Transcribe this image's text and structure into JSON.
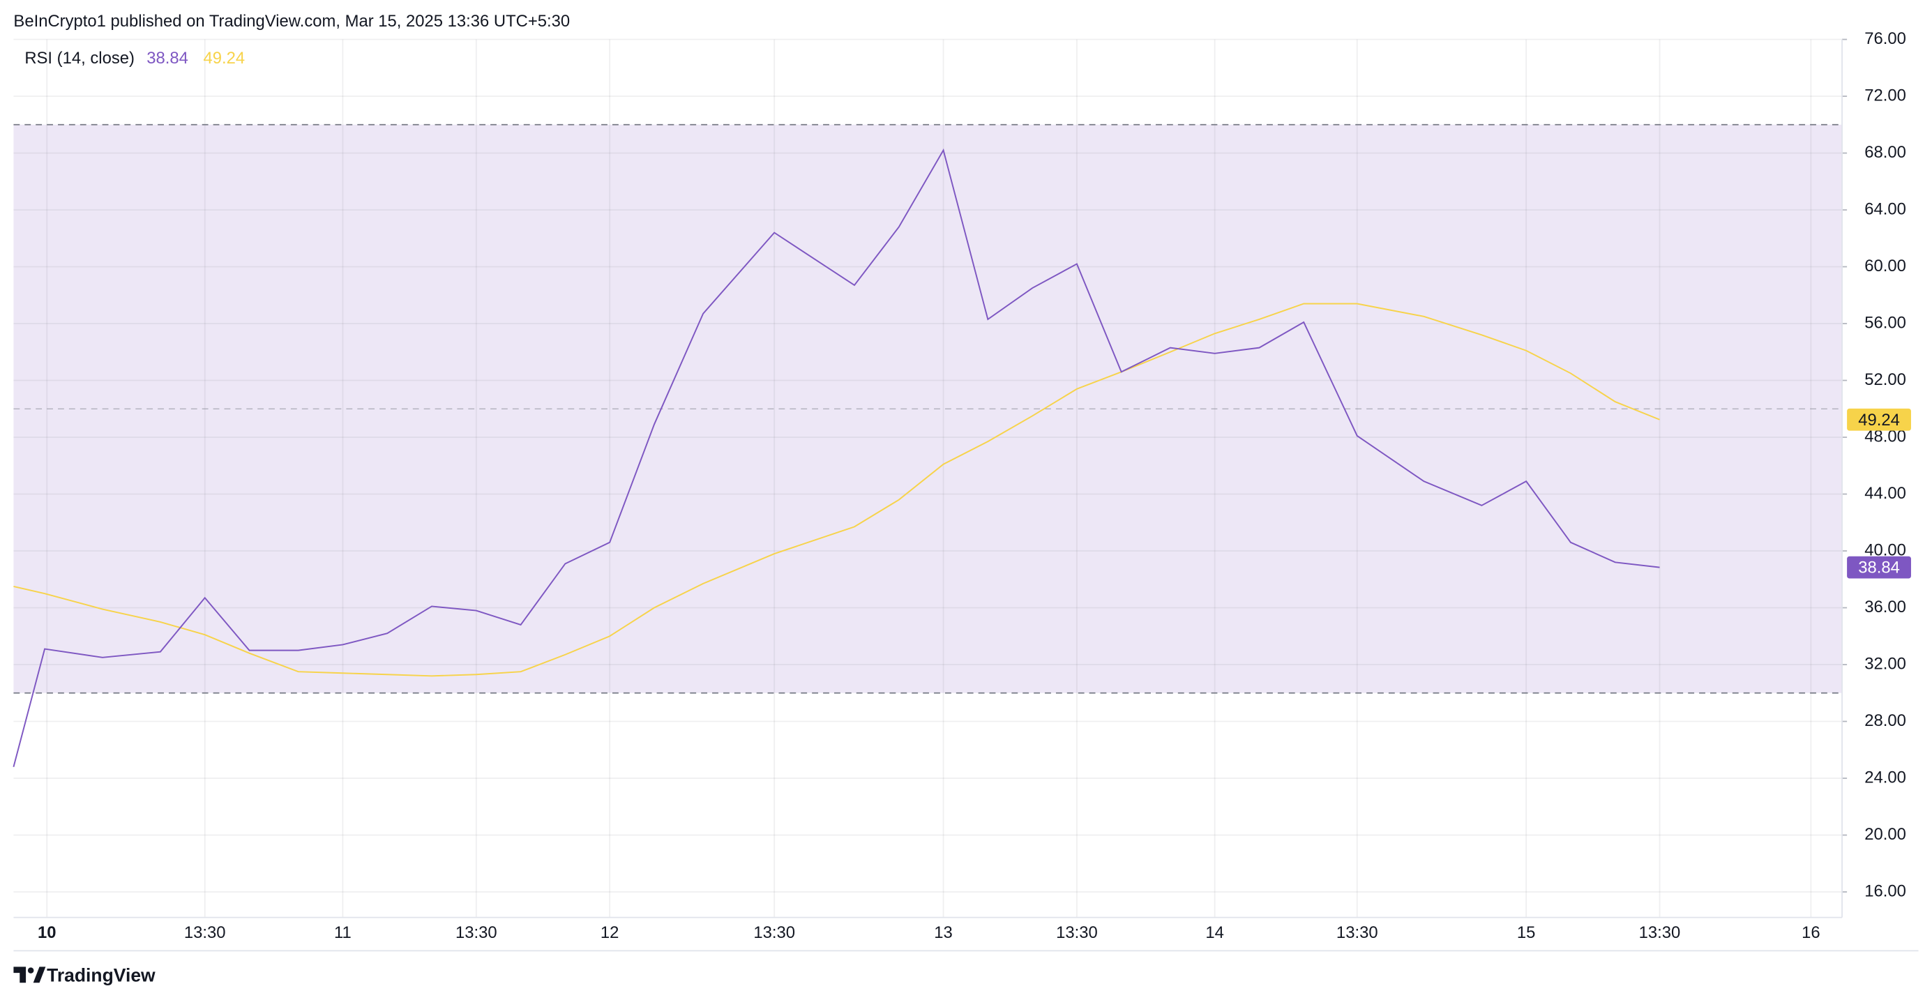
{
  "chart_data": {
    "type": "line",
    "source": "BeInCrypto1 published on TradingView.com, Mar 15, 2025 13:36 UTC+5:30",
    "indicator": "RSI (14, close)",
    "brand": "TradingView",
    "x": [
      0,
      0.7,
      2.0,
      3.3,
      4.3,
      5.3,
      6.4,
      7.4,
      8.4,
      9.4,
      10.4,
      11.4,
      12.4,
      13.4,
      14.4,
      15.5,
      17.1,
      18.9,
      19.9,
      20.9,
      21.9,
      22.9,
      23.9,
      24.9,
      26.0,
      27.0,
      28.0,
      29.0,
      30.2,
      31.7,
      33.0,
      34.0,
      35.0,
      36.0,
      37.0
    ],
    "series": [
      {
        "color": "#7e57c2",
        "values": [
          24.8,
          33.1,
          32.5,
          32.9,
          36.7,
          33.0,
          33.0,
          33.4,
          34.2,
          36.1,
          35.8,
          34.8,
          39.1,
          40.6,
          48.9,
          56.7,
          62.4,
          58.7,
          62.8,
          68.2,
          56.3,
          58.5,
          60.2,
          52.6,
          54.3,
          53.9,
          54.3,
          56.1,
          48.1,
          44.9,
          43.2,
          44.9,
          40.6,
          39.2,
          38.84
        ]
      },
      {
        "color": "#f7d34a",
        "values": [
          37.5,
          37.0,
          35.9,
          35.0,
          34.1,
          32.8,
          31.5,
          31.4,
          31.3,
          31.2,
          31.3,
          31.5,
          32.7,
          34.0,
          36.0,
          37.7,
          39.8,
          41.7,
          43.6,
          46.1,
          47.7,
          49.5,
          51.4,
          52.6,
          54.0,
          55.3,
          56.3,
          57.4,
          57.4,
          56.5,
          55.2,
          54.1,
          52.5,
          50.5,
          49.24
        ]
      }
    ],
    "bands": {
      "upper": 70,
      "middle": 50,
      "lower": 30,
      "fill": "#ede7f6",
      "line_color": "#787b86"
    },
    "xlim": [
      0,
      41.1
    ],
    "ylim": [
      14.2,
      76
    ],
    "xticks": [
      {
        "value": 0.75,
        "label": "10"
      },
      {
        "value": 4.3,
        "label": "13:30"
      },
      {
        "value": 7.4,
        "label": "11"
      },
      {
        "value": 10.4,
        "label": "13:30"
      },
      {
        "value": 13.4,
        "label": "12"
      },
      {
        "value": 17.1,
        "label": "13:30"
      },
      {
        "value": 20.9,
        "label": "13"
      },
      {
        "value": 23.9,
        "label": "13:30"
      },
      {
        "value": 27.0,
        "label": "14"
      },
      {
        "value": 30.2,
        "label": "13:30"
      },
      {
        "value": 34.0,
        "label": "15"
      },
      {
        "value": 37.0,
        "label": "13:30"
      },
      {
        "value": 40.4,
        "label": "16"
      }
    ],
    "yticks": [
      {
        "value": 16,
        "label": "16.00"
      },
      {
        "value": 20,
        "label": "20.00"
      },
      {
        "value": 24,
        "label": "24.00"
      },
      {
        "value": 28,
        "label": "28.00"
      },
      {
        "value": 32,
        "label": "32.00"
      },
      {
        "value": 36,
        "label": "36.00"
      },
      {
        "value": 40,
        "label": "40.00"
      },
      {
        "value": 44,
        "label": "44.00"
      },
      {
        "value": 48,
        "label": "48.00"
      },
      {
        "value": 52,
        "label": "52.00"
      },
      {
        "value": 56,
        "label": "56.00"
      },
      {
        "value": 60,
        "label": "60.00"
      },
      {
        "value": 64,
        "label": "64.00"
      },
      {
        "value": 68,
        "label": "68.00"
      },
      {
        "value": 72,
        "label": "72.00"
      },
      {
        "value": 76,
        "label": "76.00"
      }
    ],
    "grid": true
  }
}
